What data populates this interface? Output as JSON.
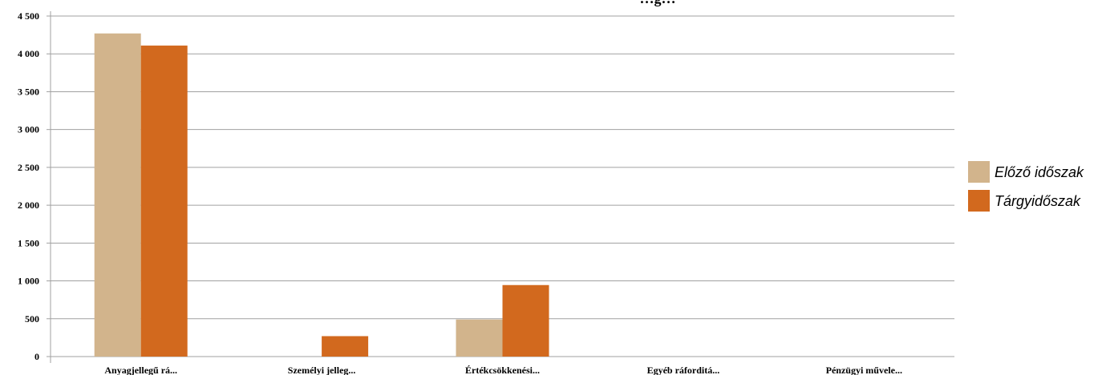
{
  "chart_data": {
    "type": "bar",
    "title": "…g…",
    "xlabel": "",
    "ylabel": "",
    "ylim": [
      0,
      4500
    ],
    "yticks": [
      0,
      500,
      1000,
      1500,
      2000,
      2500,
      3000,
      3500,
      4000,
      4500
    ],
    "ytick_labels": [
      "0",
      "500",
      "1 000",
      "1 500",
      "2 000",
      "2 500",
      "3 000",
      "3 500",
      "4 000",
      "4 500"
    ],
    "categories": [
      "Anyagjellegű rá...",
      "Személyi jelleg...",
      "Értékcsökkenési...",
      "Egyéb ráforditá...",
      "Pénzügyi művele..."
    ],
    "series": [
      {
        "name": "Előző időszak",
        "color": "#d2b48c",
        "values": [
          4270,
          0,
          490,
          0,
          0
        ]
      },
      {
        "name": "Tárgyidőszak",
        "color": "#d2691e",
        "values": [
          4110,
          270,
          945,
          0,
          0
        ]
      }
    ],
    "grid": true,
    "legend_position": "right"
  }
}
